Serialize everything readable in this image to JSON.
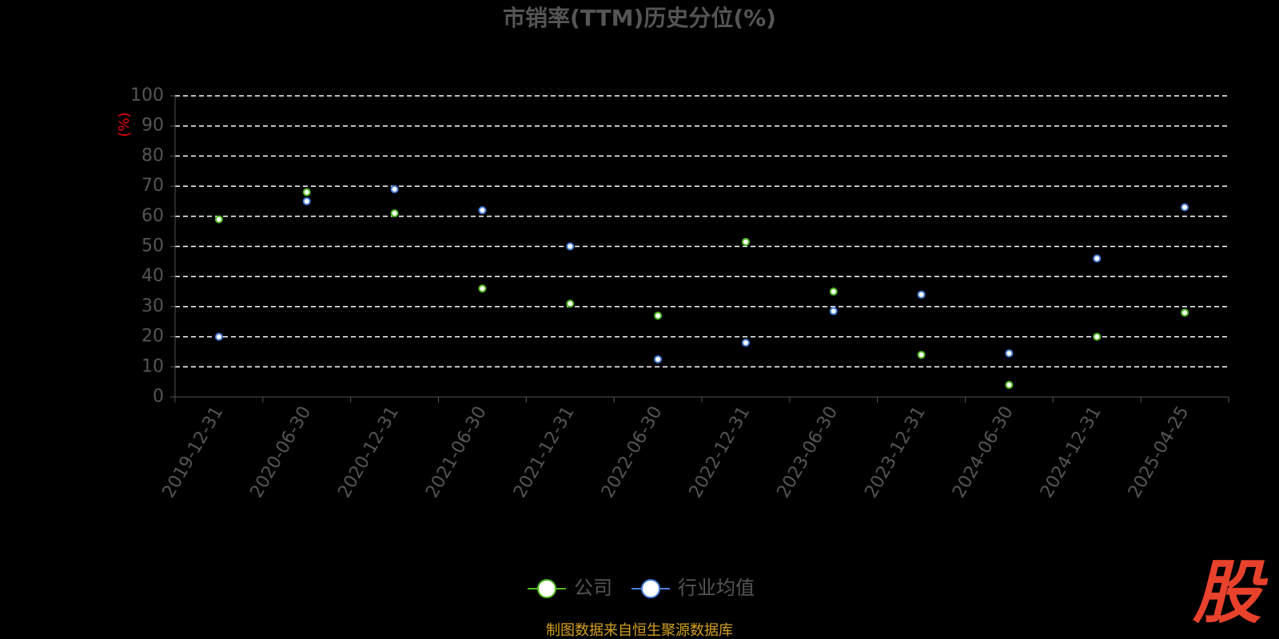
{
  "chart_data": {
    "type": "line",
    "title": "市销率(TTM)历史分位(%)",
    "y_label": "(%)",
    "categories": [
      "2019-12-31",
      "2020-06-30",
      "2020-12-31",
      "2021-06-30",
      "2021-12-31",
      "2022-06-30",
      "2022-12-31",
      "2023-06-30",
      "2023-12-31",
      "2024-06-30",
      "2024-12-31",
      "2025-04-25"
    ],
    "series": [
      {
        "name": "公司",
        "color": "#52b920",
        "values": [
          59,
          68,
          61,
          36,
          31,
          27,
          51.5,
          35,
          14,
          4,
          20,
          28
        ]
      },
      {
        "name": "行业均值",
        "color": "#4a7fdc",
        "values": [
          20,
          65,
          69,
          62,
          50,
          12.5,
          18,
          28.5,
          34,
          14.5,
          46,
          63
        ]
      }
    ],
    "ylim": [
      0,
      100
    ],
    "yticks": [
      0,
      10,
      20,
      30,
      40,
      50,
      60,
      70,
      80,
      90,
      100
    ],
    "grid": true,
    "legend": "bottom",
    "source": "制图数据来自恒生聚源数据库",
    "watermark": "股"
  }
}
